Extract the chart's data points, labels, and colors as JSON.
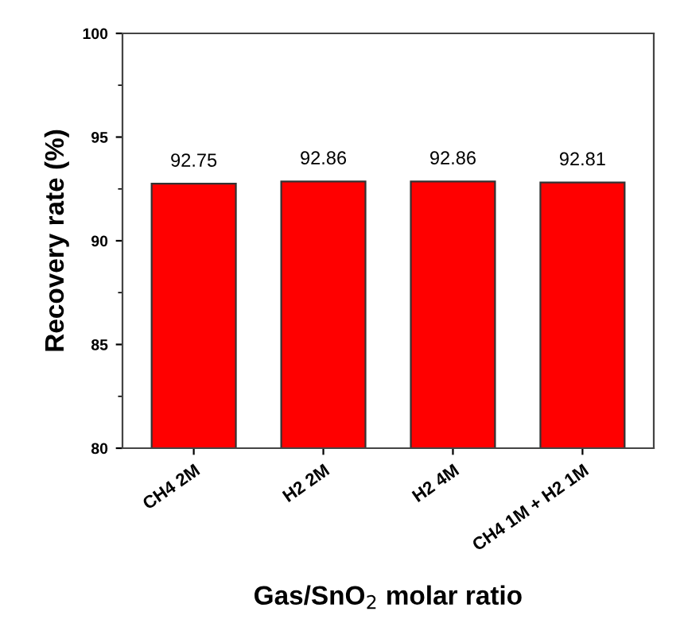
{
  "chart_data": {
    "type": "bar",
    "xlabel": "Gas/SnO$_{2}$ molar ratio",
    "ylabel": "Recovery rate (%)",
    "categories": [
      "CH4 2M",
      "H2 2M",
      "H2 4M",
      "CH4 1M + H2 1M"
    ],
    "values": [
      92.75,
      92.86,
      92.86,
      92.81
    ],
    "color": "#ff0000",
    "ylim": [
      80,
      100
    ],
    "yticks": [
      80,
      85,
      90,
      95,
      100
    ],
    "data_labels": true
  }
}
